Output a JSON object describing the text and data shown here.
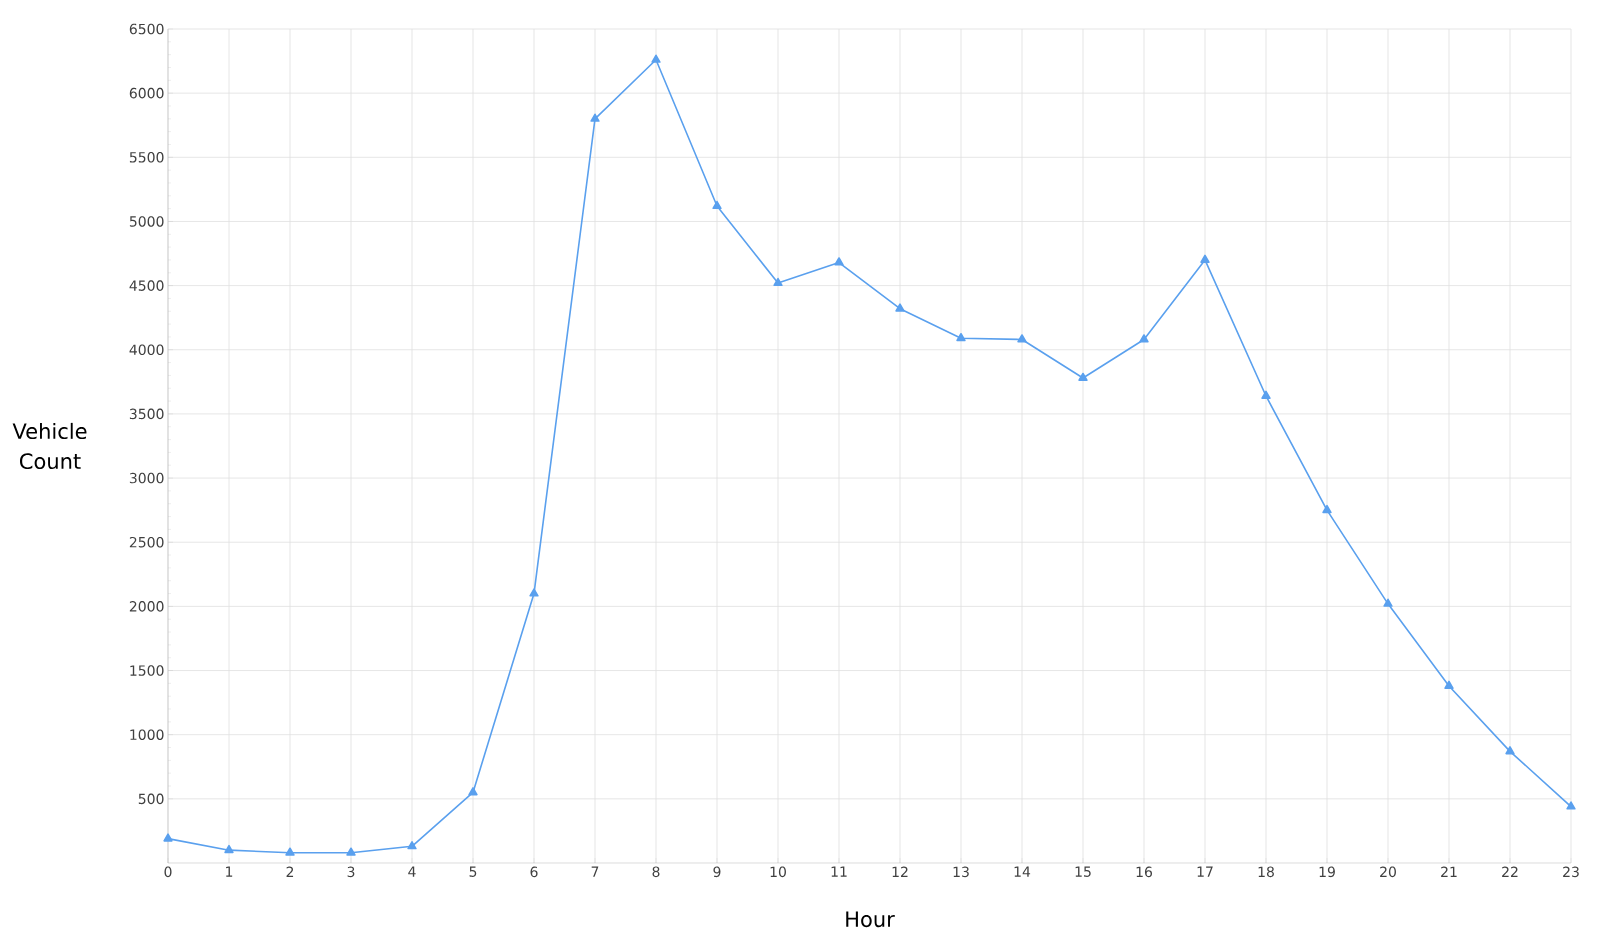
{
  "chart_data": {
    "type": "line",
    "xlabel": "Hour",
    "ylabel": "Vehicle Count",
    "x": [
      0,
      1,
      2,
      3,
      4,
      5,
      6,
      7,
      8,
      9,
      10,
      11,
      12,
      13,
      14,
      15,
      16,
      17,
      18,
      19,
      20,
      21,
      22,
      23
    ],
    "series": [
      {
        "color": "#5aa0ee",
        "values": [
          190,
          100,
          80,
          80,
          130,
          550,
          2100,
          5800,
          6260,
          5120,
          4520,
          4680,
          4320,
          4090,
          4080,
          3780,
          4080,
          4700,
          3640,
          2750,
          2020,
          1380,
          870,
          440
        ]
      }
    ],
    "xlim": [
      0,
      23
    ],
    "xticks": [
      0,
      1,
      2,
      3,
      4,
      5,
      6,
      7,
      8,
      9,
      10,
      11,
      12,
      13,
      14,
      15,
      16,
      17,
      18,
      19,
      20,
      21,
      22,
      23
    ],
    "ylim": [
      0,
      6500
    ],
    "yticks": [
      500,
      1000,
      1500,
      2000,
      2500,
      3000,
      3500,
      4000,
      4500,
      5000,
      5500,
      6000,
      6500
    ],
    "grid": true,
    "marker": "triangle",
    "line_style": "solid"
  }
}
